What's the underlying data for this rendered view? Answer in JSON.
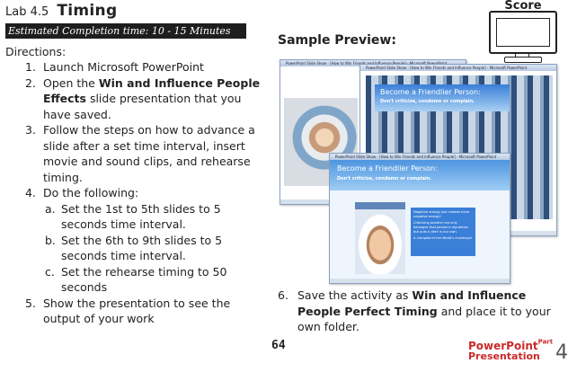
{
  "header": {
    "lab_number": "Lab 4.5",
    "lab_title": "Timing",
    "estimated_time": "Estimated Completion time: 10 - 15 Minutes"
  },
  "directions": {
    "label": "Directions:",
    "step1": {
      "num": "1.",
      "text": "Launch Microsoft PowerPoint"
    },
    "step2": {
      "num": "2.",
      "pre": "Open the ",
      "bold": "Win and Influence People Effects",
      "post": " slide presentation that you have saved."
    },
    "step3": {
      "num": "3.",
      "text": "Follow the steps on how to advance a slide after a set time interval, insert movie and sound clips, and rehearse timing."
    },
    "step4": {
      "num": "4.",
      "text": "Do the following:"
    },
    "step4a": {
      "num": "a.",
      "text": "Set the 1st to 5th slides to 5 seconds time interval."
    },
    "step4b": {
      "num": "b.",
      "text": "Set the 6th to 9th slides to 5 seconds time interval."
    },
    "step4c": {
      "num": "c.",
      "text": "Set the rehearse timing to 50 seconds"
    },
    "step5": {
      "num": "5.",
      "text": "Show the presentation to see the output of your work"
    },
    "step6": {
      "num": "6.",
      "pre": "Save the activity as ",
      "bold": "Win and Influence People Perfect Timing",
      "post": " and place it to your own folder."
    }
  },
  "score": {
    "label": "Score"
  },
  "sample": {
    "label": "Sample Preview:",
    "window_title": "PowerPoint Slide Show - [How to Win Friends and Influence People] - Microsoft PowerPoint",
    "slide_title": "Become a Friendlier Person:",
    "slide_subtitle": "Don't criticize, condemn or complain.",
    "note_lines": [
      "Negative energy just creates more negative energy!",
      "Criticizing another not only damages that person's reputation but puts a dent in our own.",
      "A Complaint-Free World's challenge!"
    ]
  },
  "footer": {
    "page_number": "64",
    "brand_line1": "PowerPoint",
    "brand_part": "Part",
    "brand_line2": "Presentation",
    "brand_number": "4"
  },
  "colors": {
    "banner_bg": "#1e1e1e",
    "brand_red": "#cc2a2a",
    "slide_blue": "#3a7fd8"
  }
}
